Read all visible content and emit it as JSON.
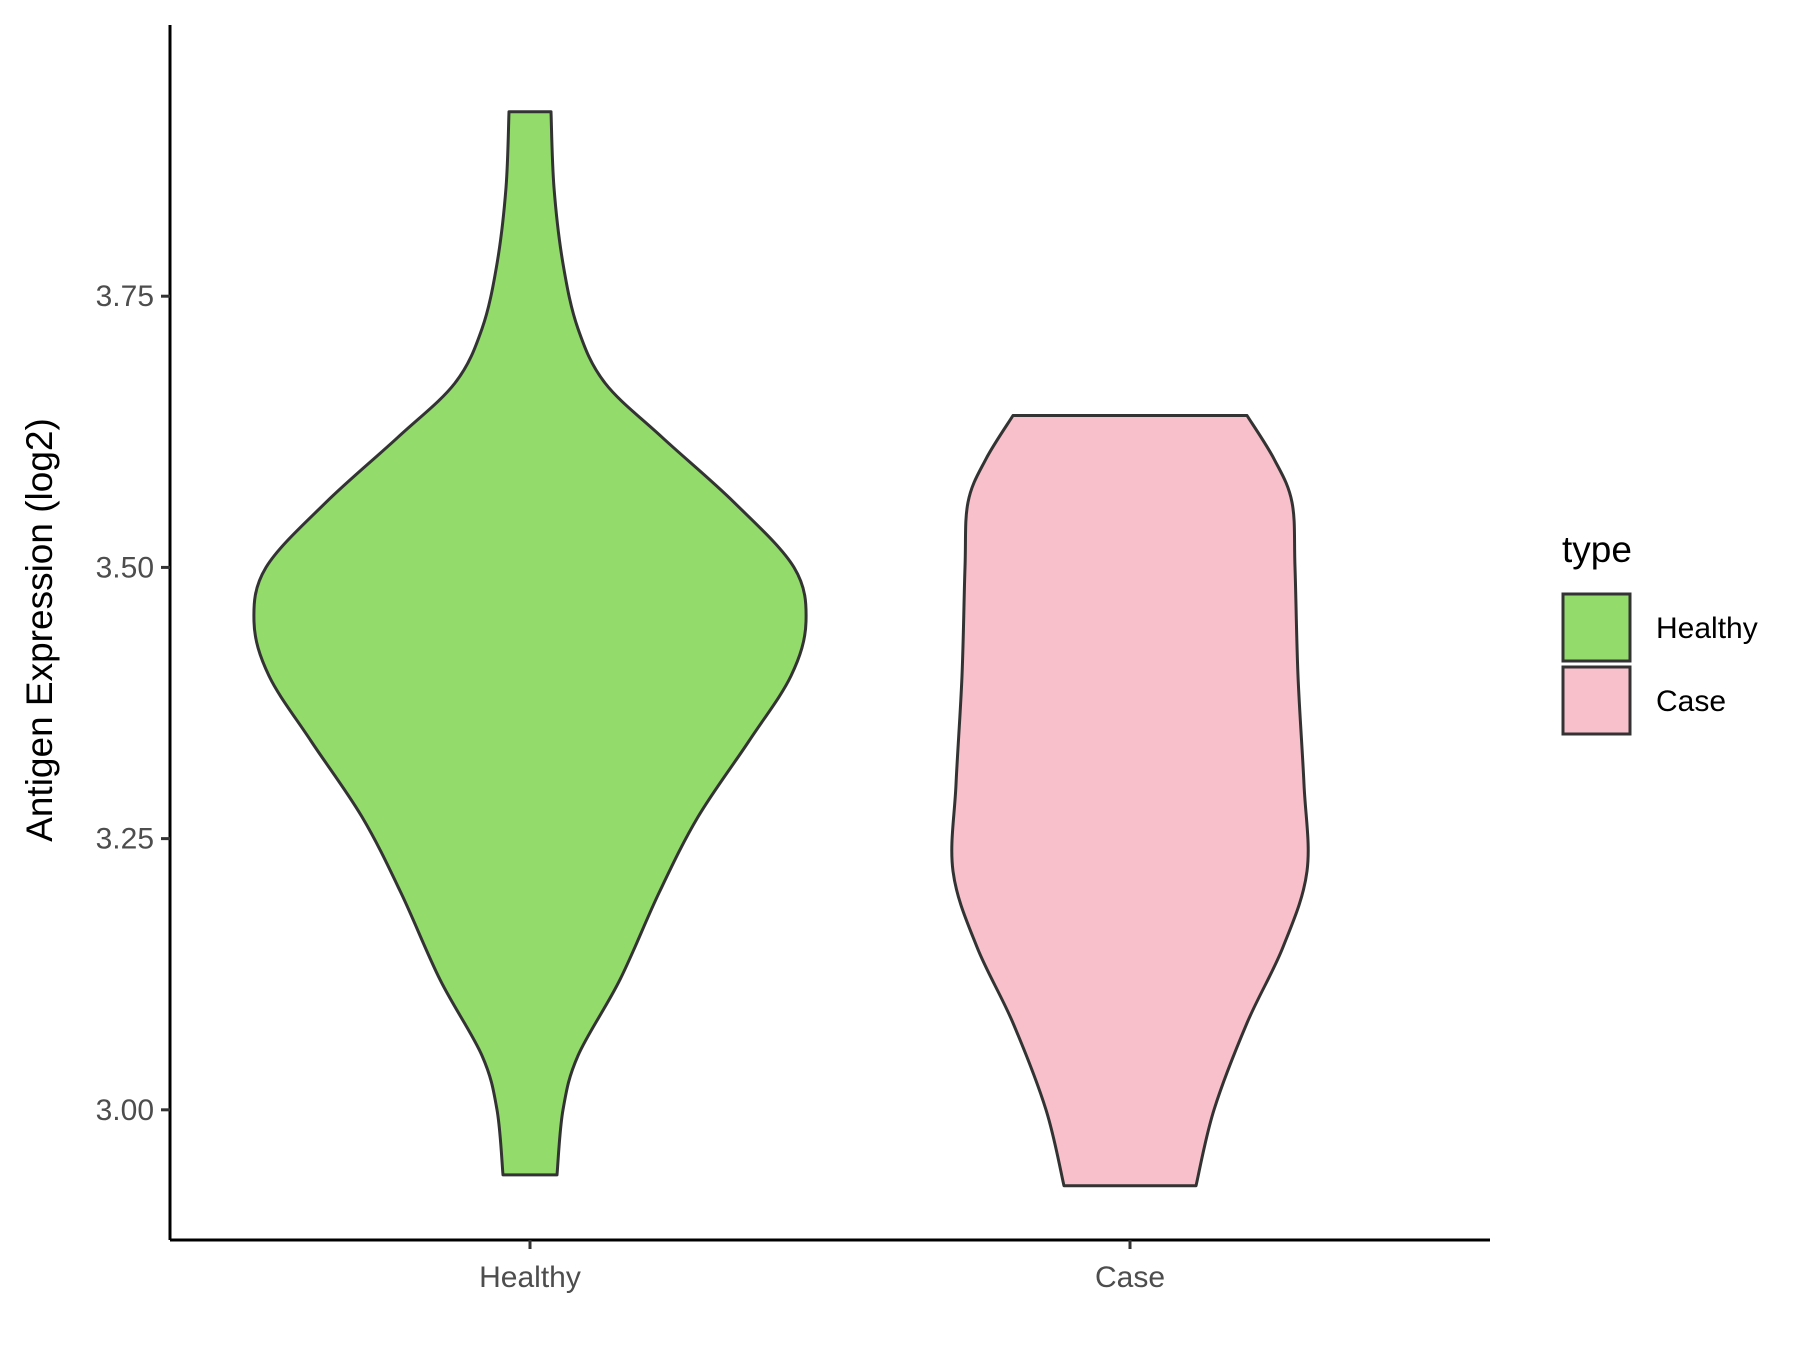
{
  "chart_data": {
    "type": "violin",
    "title": "",
    "xlabel": "",
    "ylabel": "Antigen Expression (log2)",
    "categories": [
      "Healthy",
      "Case"
    ],
    "ylim": [
      2.88,
      4.0
    ],
    "yticks": [
      3.0,
      3.25,
      3.5,
      3.75
    ],
    "ytick_labels": [
      "3.00",
      "3.25",
      "3.50",
      "3.75"
    ],
    "grid": false,
    "legend": {
      "title": "type",
      "placement": "right",
      "entries": [
        {
          "label": "Healthy",
          "color": "#93DC6B"
        },
        {
          "label": "Case",
          "color": "#F8C0CB"
        }
      ]
    },
    "series": [
      {
        "category": "Healthy",
        "color": "#93DC6B",
        "min": 2.94,
        "max": 3.92,
        "profile": [
          [
            2.94,
            0.09
          ],
          [
            3.0,
            0.11
          ],
          [
            3.05,
            0.16
          ],
          [
            3.12,
            0.3
          ],
          [
            3.2,
            0.43
          ],
          [
            3.27,
            0.56
          ],
          [
            3.34,
            0.73
          ],
          [
            3.4,
            0.87
          ],
          [
            3.45,
            0.92
          ],
          [
            3.5,
            0.88
          ],
          [
            3.56,
            0.68
          ],
          [
            3.62,
            0.44
          ],
          [
            3.67,
            0.25
          ],
          [
            3.72,
            0.16
          ],
          [
            3.78,
            0.11
          ],
          [
            3.85,
            0.08
          ],
          [
            3.92,
            0.07
          ]
        ]
      },
      {
        "category": "Case",
        "color": "#F8C0CB",
        "min": 2.93,
        "max": 3.64,
        "profile": [
          [
            2.93,
            0.22
          ],
          [
            3.0,
            0.28
          ],
          [
            3.08,
            0.39
          ],
          [
            3.15,
            0.51
          ],
          [
            3.22,
            0.59
          ],
          [
            3.3,
            0.58
          ],
          [
            3.4,
            0.56
          ],
          [
            3.5,
            0.55
          ],
          [
            3.56,
            0.54
          ],
          [
            3.6,
            0.48
          ],
          [
            3.64,
            0.39
          ]
        ]
      }
    ]
  }
}
